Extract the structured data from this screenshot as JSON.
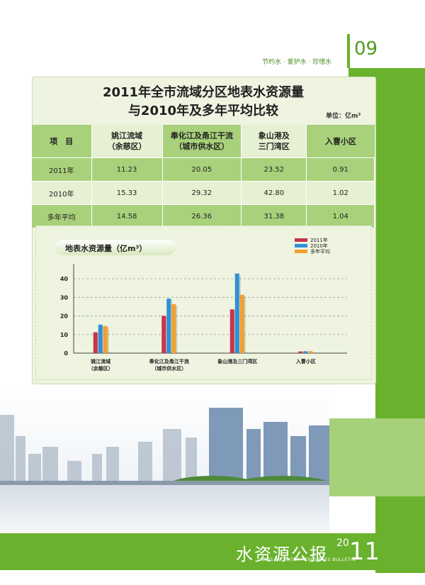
{
  "header": {
    "slogan": "节约水 · 爱护水 · 珍惜水",
    "page_number": "09"
  },
  "panel": {
    "title_line1": "2011年全市流域分区地表水资源量",
    "title_line2": "与2010年及多年平均比较",
    "unit": "单位：亿m³"
  },
  "table": {
    "headers": [
      "项　目",
      "姚江流域\n（余慈区）",
      "奉化江及甬江干流\n（城市供水区）",
      "象山港及\n三门湾区",
      "入曹小区"
    ],
    "rows": [
      [
        "2011年",
        "11.23",
        "20.05",
        "23.52",
        "0.91"
      ],
      [
        "2010年",
        "15.33",
        "29.32",
        "42.80",
        "1.02"
      ],
      [
        "多年平均",
        "14.58",
        "26.36",
        "31.38",
        "1.04"
      ]
    ]
  },
  "chart_data": {
    "type": "bar",
    "title": "地表水资源量（亿m³）",
    "categories": [
      "姚江流域\n（余慈区）",
      "奉化江及甬江干流\n（城市供水区）",
      "象山港及三门湾区",
      "入曹小区"
    ],
    "series": [
      {
        "name": "2011年",
        "values": [
          11.23,
          20.05,
          23.52,
          0.91
        ]
      },
      {
        "name": "2010年",
        "values": [
          15.33,
          29.32,
          42.8,
          1.02
        ]
      },
      {
        "name": "多年平均",
        "values": [
          14.58,
          26.36,
          31.38,
          1.04
        ]
      }
    ],
    "yticks": [
      0,
      10,
      20,
      30,
      40
    ],
    "ylim": [
      0,
      45
    ],
    "grid": true,
    "legend": "top-right",
    "colors": [
      "#c8344a",
      "#2f8fd8",
      "#f0a030"
    ]
  },
  "footer": {
    "title": "水资源公报",
    "subtitle": "NING BO WATER RESOURCES BULLETIN",
    "year_small": "20",
    "year_big": "11"
  },
  "colors": {
    "brand_green": "#6ab22e",
    "light_green": "#a6d178"
  }
}
